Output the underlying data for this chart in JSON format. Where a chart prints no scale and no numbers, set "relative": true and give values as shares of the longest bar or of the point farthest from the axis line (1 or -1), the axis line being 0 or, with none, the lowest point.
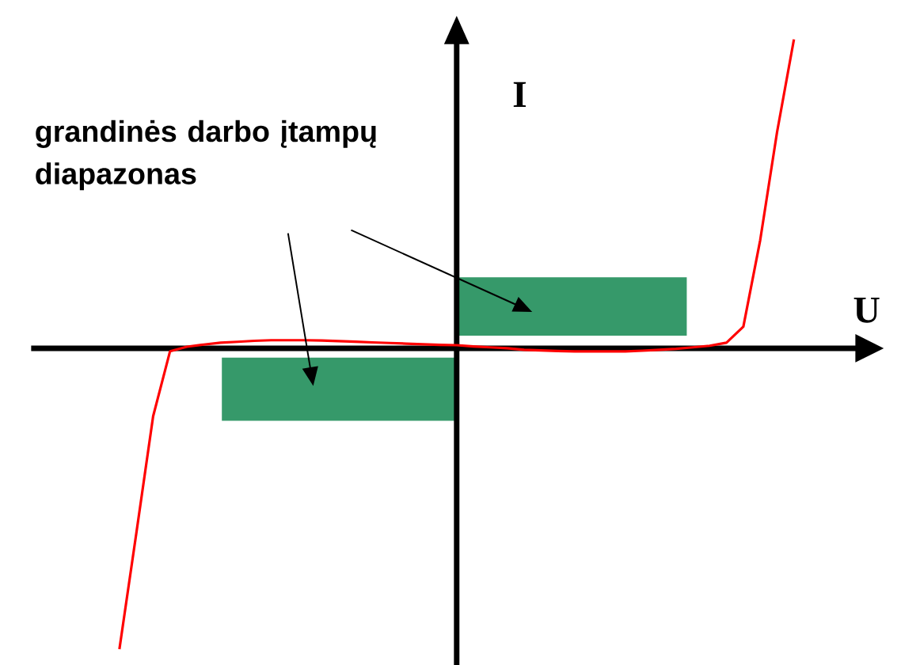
{
  "chart_data": {
    "type": "line",
    "relative": true,
    "xlabel": "U",
    "ylabel": "I",
    "marker": "none",
    "annotations": [
      "grandinės darbo įtampų diapazonas"
    ],
    "categories": [
      null,
      null,
      null,
      null,
      null,
      null,
      null,
      null,
      null,
      null,
      null,
      null,
      null,
      null,
      null,
      null,
      null,
      null,
      null,
      null,
      null,
      null,
      null,
      null,
      null,
      null,
      null,
      null,
      null,
      null,
      null,
      null,
      null,
      null,
      null,
      null,
      null,
      null,
      null,
      null,
      null
    ],
    "series": [
      {
        "color": "#ff0000",
        "values": [
          -0.974,
          -0.6,
          -0.22,
          -0.01,
          0.005,
          0.012,
          0.018,
          0.021,
          0.024,
          0.026,
          0.026,
          0.026,
          0.025,
          0.023,
          0.021,
          0.019,
          0.017,
          0.015,
          0.013,
          0.011,
          0.01,
          0.006,
          0.003,
          0,
          -0.005,
          -0.007,
          -0.009,
          -0.01,
          -0.01,
          -0.01,
          -0.01,
          -0.008,
          -0.005,
          -0.002,
          0.003,
          0.008,
          0.018,
          0.07,
          0.35,
          0.7,
          1
        ]
      }
    ]
  }
}
